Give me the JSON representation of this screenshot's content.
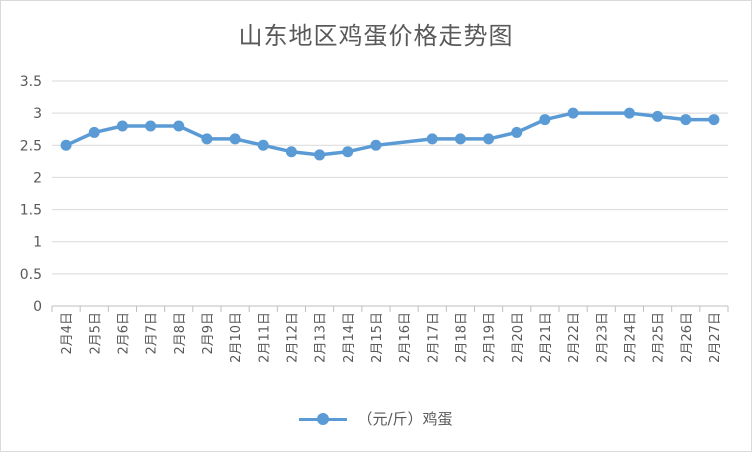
{
  "chart_data": {
    "type": "line",
    "title": "山东地区鸡蛋价格走势图",
    "categories": [
      "2月4日",
      "2月5日",
      "2月6日",
      "2月7日",
      "2月8日",
      "2月9日",
      "2月10日",
      "2月11日",
      "2月12日",
      "2月13日",
      "2月14日",
      "2月15日",
      "2月16日",
      "2月17日",
      "2月18日",
      "2月19日",
      "2月20日",
      "2月21日",
      "2月22日",
      "2月23日",
      "2月24日",
      "2月25日",
      "2月26日",
      "2月27日"
    ],
    "series": [
      {
        "name": "（元/斤）鸡蛋",
        "color": "#5b9bd5",
        "values": [
          2.5,
          2.7,
          2.8,
          2.8,
          2.8,
          2.6,
          2.6,
          2.5,
          2.4,
          2.35,
          2.4,
          2.5,
          null,
          2.6,
          2.6,
          2.6,
          2.7,
          2.9,
          3.0,
          null,
          3.0,
          2.95,
          2.9,
          2.9
        ]
      }
    ],
    "ylim": [
      0,
      3.5
    ],
    "yticks": [
      "0",
      "0.5",
      "1",
      "1.5",
      "2",
      "2.5",
      "3",
      "3.5"
    ],
    "grid": true,
    "legend": "bottom"
  }
}
